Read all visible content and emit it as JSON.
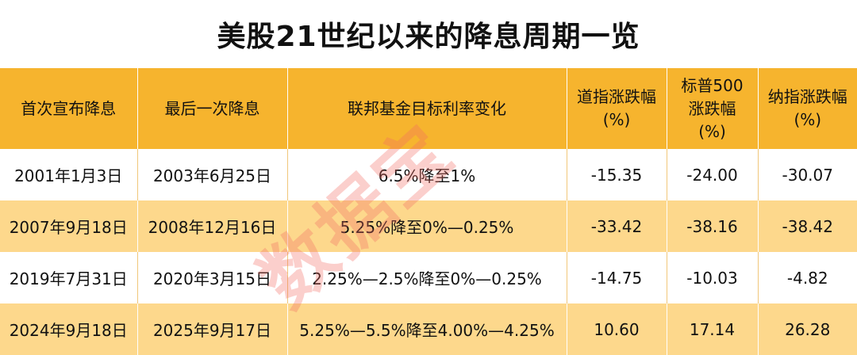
{
  "title": "美股21世纪以来的降息周期一览",
  "watermark": "数据宝",
  "colors": {
    "header_bg": "#f6b42e",
    "row_alt_bg": "#fdd88c",
    "watermark": "#f26e64"
  },
  "table": {
    "headers": [
      {
        "line1": "首次宣布降息",
        "line2": ""
      },
      {
        "line1": "最后一次降息",
        "line2": ""
      },
      {
        "line1": "联邦基金目标利率变化",
        "line2": ""
      },
      {
        "line1": "道指涨跌幅",
        "line2": "(%)"
      },
      {
        "line1": "标普500",
        "line2": "涨跌幅",
        "line3": "(%)"
      },
      {
        "line1": "纳指涨跌幅",
        "line2": "(%)"
      }
    ],
    "rows": [
      [
        "2001年1月3日",
        "2003年6月25日",
        "6.5%降至1%",
        "-15.35",
        "-24.00",
        "-30.07"
      ],
      [
        "2007年9月18日",
        "2008年12月16日",
        "5.25%降至0%—0.25%",
        "-33.42",
        "-38.16",
        "-38.42"
      ],
      [
        "2019年7月31日",
        "2020年3月15日",
        "2.25%—2.5%降至0%—0.25%",
        "-14.75",
        "-10.03",
        "-4.82"
      ],
      [
        "2024年9月18日",
        "2025年9月17日",
        "5.25%—5.5%降至4.00%—4.25%",
        "10.60",
        "17.14",
        "26.28"
      ]
    ]
  }
}
